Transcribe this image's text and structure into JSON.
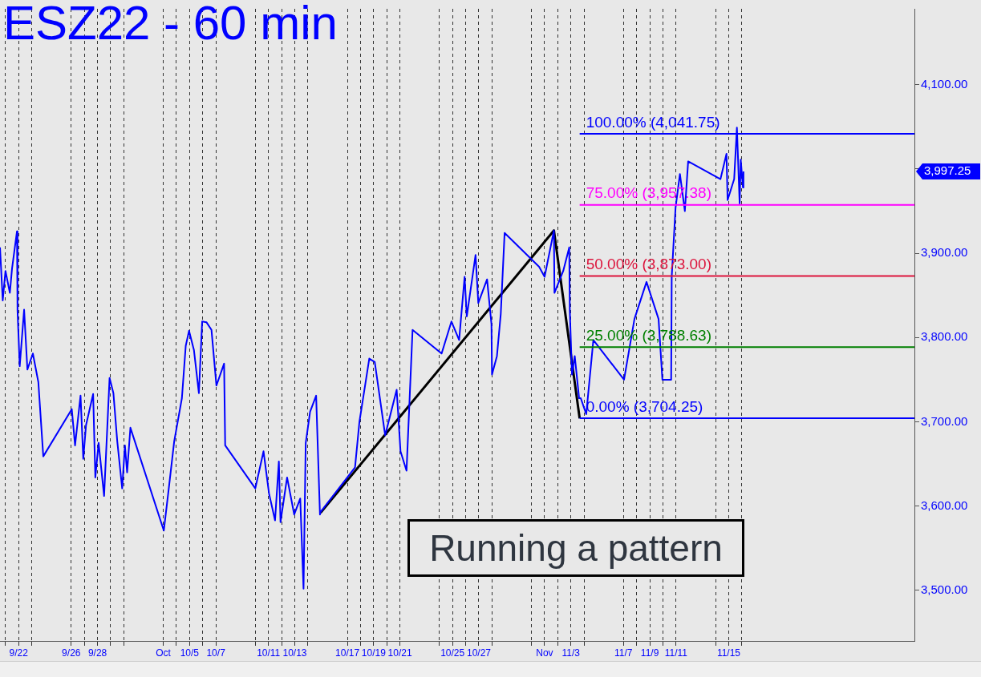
{
  "chart_data": {
    "type": "line",
    "title": "ESZ22 - 60 min",
    "xlim": [
      "--09-20T14:00",
      "--11-29T03:00"
    ],
    "ylim": [
      3440,
      4190
    ],
    "xticks": [
      {
        "value": "--09-21",
        "label": null
      },
      {
        "value": "--09-22",
        "label": "9/22"
      },
      {
        "value": "--09-23",
        "label": null
      },
      {
        "value": "--09-26",
        "label": "9/26"
      },
      {
        "value": "--09-27",
        "label": null
      },
      {
        "value": "--09-28",
        "label": "9/28"
      },
      {
        "value": "--09-29",
        "label": null
      },
      {
        "value": "--09-30",
        "label": null
      },
      {
        "value": "--10-03",
        "label": "Oct"
      },
      {
        "value": "--10-04",
        "label": null
      },
      {
        "value": "--10-05",
        "label": "10/5"
      },
      {
        "value": "--10-06",
        "label": null
      },
      {
        "value": "--10-07",
        "label": "10/7"
      },
      {
        "value": "--10-10",
        "label": null
      },
      {
        "value": "--10-11",
        "label": "10/11"
      },
      {
        "value": "--10-12",
        "label": null
      },
      {
        "value": "--10-13",
        "label": "10/13"
      },
      {
        "value": "--10-14",
        "label": null
      },
      {
        "value": "--10-17",
        "label": "10/17"
      },
      {
        "value": "--10-18",
        "label": null
      },
      {
        "value": "--10-19",
        "label": "10/19"
      },
      {
        "value": "--10-20",
        "label": null
      },
      {
        "value": "--10-21",
        "label": "10/21"
      },
      {
        "value": "--10-24",
        "label": null
      },
      {
        "value": "--10-25",
        "label": "10/25"
      },
      {
        "value": "--10-26",
        "label": null
      },
      {
        "value": "--10-27",
        "label": "10/27"
      },
      {
        "value": "--10-28",
        "label": null
      },
      {
        "value": "--10-31",
        "label": null
      },
      {
        "value": "--11-01",
        "label": "Nov"
      },
      {
        "value": "--11-02",
        "label": null
      },
      {
        "value": "--11-03",
        "label": "11/3"
      },
      {
        "value": "--11-04",
        "label": null
      },
      {
        "value": "--11-07",
        "label": "11/7"
      },
      {
        "value": "--11-08",
        "label": null
      },
      {
        "value": "--11-09",
        "label": "11/9"
      },
      {
        "value": "--11-10",
        "label": null
      },
      {
        "value": "--11-11",
        "label": "11/11"
      },
      {
        "value": "--11-14",
        "label": null
      },
      {
        "value": "--11-15",
        "label": "11/15"
      },
      {
        "value": "--11-16",
        "label": null
      }
    ],
    "yticks": [
      {
        "value": 3500,
        "label": "3,500.00"
      },
      {
        "value": 3600,
        "label": "3,600.00"
      },
      {
        "value": 3700,
        "label": "3,700.00"
      },
      {
        "value": 3800,
        "label": "3,800.00"
      },
      {
        "value": 3900,
        "label": "3,900.00"
      },
      {
        "value": 4000,
        "label": null
      },
      {
        "value": 4100,
        "label": "4,100.00"
      }
    ],
    "grid": "x",
    "legend": false,
    "marker": "none",
    "line_style": "solid",
    "series": [
      {
        "color": "#0000ff",
        "x": [
          "--09-20T14:00",
          "--09-20T19:00",
          "--09-21T00:00",
          "--09-21T08:00",
          "--09-21T12:00",
          "--09-21T21:00",
          "--09-21T22:00",
          "--09-22T02:00",
          "--09-22T10:00",
          "--09-22T16:00",
          "--09-23T02:00",
          "--09-23T12:00",
          "--09-23T21:00",
          "--09-26T01:00",
          "--09-26T07:00",
          "--09-26T17:00",
          "--09-26T22:00",
          "--09-27T03:00",
          "--09-27T16:00",
          "--09-27T20:00",
          "--09-28T02:00",
          "--09-28T12:00",
          "--09-28T22:00",
          "--09-29T05:00",
          "--09-29T12:00",
          "--09-29T21:00",
          "--09-30T02:00",
          "--09-30T06:00",
          "--09-30T12:00",
          "--10-03T01:00",
          "--10-03T09:00",
          "--10-03T20:00",
          "--10-04T10:00",
          "--10-04T17:00",
          "--10-04T23:00",
          "--10-05T08:00",
          "--10-05T17:00",
          "--10-05T23:00",
          "--10-06T07:00",
          "--10-06T16:00",
          "--10-07T01:00",
          "--10-07T15:00",
          "--10-07T17:00",
          "--10-10T00:00",
          "--10-10T15:00",
          "--10-11T01:00",
          "--10-11T12:00",
          "--10-11T19:00",
          "--10-11T22:00",
          "--10-12T10:00",
          "--10-12T23:00",
          "--10-13T10:00",
          "--10-13T16:00",
          "--10-13T20:00",
          "--10-14T04:00",
          "--10-14T15:00",
          "--10-14T22:00",
          "--10-14T23:00",
          "--10-17T14:00",
          "--10-17T22:00",
          "--10-18T16:00",
          "--10-19T02:00",
          "--10-19T21:00",
          "--10-20T18:00",
          "--10-21T01:00",
          "--10-21T12:00",
          "--10-21T23:00",
          "--10-24T04:00",
          "--10-24T22:00",
          "--10-25T12:00",
          "--10-25T22:00",
          "--10-26T02:00",
          "--10-26T18:00",
          "--10-26T23:00",
          "--10-27T15:00",
          "--10-27T23:00",
          "--10-28T00:00",
          "--10-28T09:00",
          "--10-28T16:00",
          "--10-28T23:00",
          "--10-31T14:00",
          "--11-01T00:00",
          "--11-01T17:00",
          "--11-01T18:00",
          "--11-02T10:00",
          "--11-02T21:00",
          "--11-02T22:00",
          "--11-03T02:00",
          "--11-03T07:00",
          "--11-03T15:00",
          "--11-03T18:00",
          "--11-04T04:00",
          "--11-04T17:00",
          "--11-07T01:00",
          "--11-07T20:00",
          "--11-08T18:00",
          "--11-09T16:00",
          "--11-09T23:00",
          "--11-10T15:00",
          "--11-10T16:00",
          "--11-10T23:00",
          "--11-11T07:00",
          "--11-11T16:00",
          "--11-11T22:00",
          "--11-14T09:00",
          "--11-14T20:00",
          "--11-14T22:00",
          "--11-15T10:00",
          "--11-15T15:00",
          "--11-15T20:00",
          "--11-15T22:00",
          "--11-16T02:00",
          "--11-16T03:00"
        ],
        "values": [
          3907,
          3844,
          3879,
          3853,
          3882,
          3926,
          3832,
          3766,
          3833,
          3762,
          3781,
          3747,
          3659,
          3715,
          3672,
          3731,
          3656,
          3696,
          3733,
          3634,
          3675,
          3612,
          3752,
          3734,
          3677,
          3621,
          3672,
          3640,
          3693,
          3571,
          3615,
          3677,
          3728,
          3790,
          3808,
          3785,
          3734,
          3819,
          3818,
          3809,
          3743,
          3769,
          3672,
          3621,
          3665,
          3615,
          3583,
          3653,
          3581,
          3634,
          3590,
          3609,
          3502,
          3675,
          3712,
          3731,
          3590,
          3593,
          3646,
          3700,
          3775,
          3771,
          3684,
          3738,
          3665,
          3642,
          3809,
          3781,
          3819,
          3797,
          3872,
          3825,
          3898,
          3841,
          3869,
          3816,
          3756,
          3778,
          3828,
          3924,
          3884,
          3872,
          3927,
          3853,
          3879,
          3907,
          3832,
          3756,
          3778,
          3728,
          3728,
          3709,
          3797,
          3750,
          3822,
          3866,
          3822,
          3750,
          3750,
          3872,
          3954,
          3994,
          3950,
          4009,
          3988,
          4018,
          3963,
          3988,
          4049,
          3959,
          4011,
          3978,
          3997
        ]
      },
      {
        "color": "#000000",
        "x": [
          "--10-14T23:00",
          "--11-01T17:00",
          "--11-03T16:00"
        ],
        "values": [
          3592,
          3927,
          3704
        ]
      }
    ],
    "ref_lines": [
      {
        "axis": "y",
        "value": 4041.75,
        "label": "100.00% (4,041.75)",
        "color": "#0000ff"
      },
      {
        "axis": "y",
        "value": 3957.38,
        "label": "75.00% (3,957.38)",
        "color": "#ff00ff"
      },
      {
        "axis": "y",
        "value": 3873,
        "label": "50.00% (3,873.00)",
        "color": "#dc143c"
      },
      {
        "axis": "y",
        "value": 3788.63,
        "label": "25.00% (3,788.63)",
        "color": "#008000"
      },
      {
        "axis": "y",
        "value": 3704.25,
        "label": "0.00% (3,704.25)",
        "color": "#0000ff"
      }
    ],
    "annotations": [
      "3,997.25",
      "Running a pattern"
    ]
  }
}
